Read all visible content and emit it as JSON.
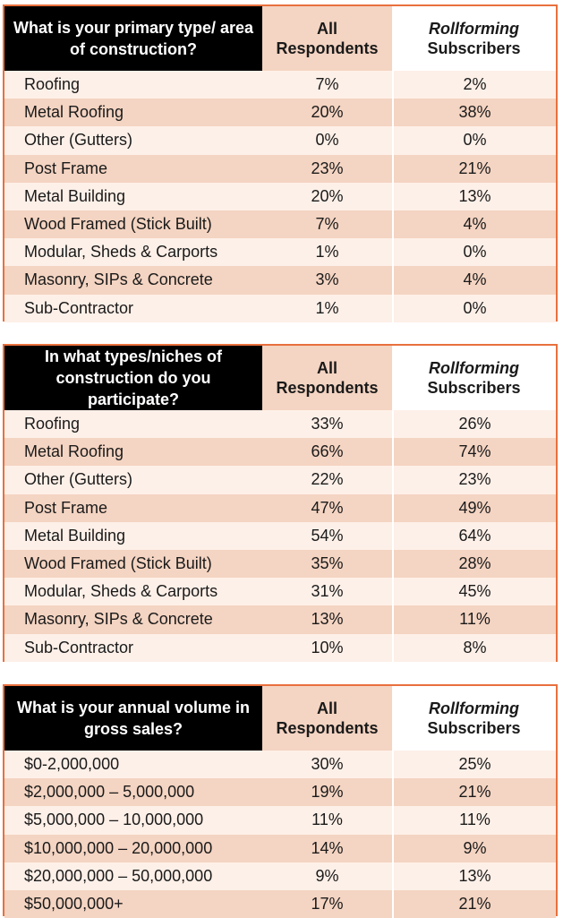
{
  "tables": [
    {
      "question": "What is your primary type/ area of construction?",
      "col1": "All Respondents",
      "col2_line1": "Rollforming",
      "col2_line2": "Subscribers",
      "rows": [
        {
          "label": "Roofing",
          "all": "7%",
          "subs": "2%"
        },
        {
          "label": "Metal Roofing",
          "all": "20%",
          "subs": "38%"
        },
        {
          "label": "Other (Gutters)",
          "all": "0%",
          "subs": "0%"
        },
        {
          "label": "Post Frame",
          "all": "23%",
          "subs": "21%"
        },
        {
          "label": "Metal Building",
          "all": "20%",
          "subs": "13%"
        },
        {
          "label": "Wood Framed (Stick Built)",
          "all": "7%",
          "subs": "4%"
        },
        {
          "label": "Modular, Sheds & Carports",
          "all": "1%",
          "subs": "0%"
        },
        {
          "label": "Masonry, SIPs & Concrete",
          "all": "3%",
          "subs": "4%"
        },
        {
          "label": "Sub-Contractor",
          "all": "1%",
          "subs": "0%"
        }
      ]
    },
    {
      "question": "In what types/niches of construction do you participate?",
      "col1": "All Respondents",
      "col2_line1": "Rollforming",
      "col2_line2": "Subscribers",
      "rows": [
        {
          "label": "Roofing",
          "all": "33%",
          "subs": "26%"
        },
        {
          "label": "Metal Roofing",
          "all": "66%",
          "subs": "74%"
        },
        {
          "label": "Other (Gutters)",
          "all": "22%",
          "subs": "23%"
        },
        {
          "label": "Post Frame",
          "all": "47%",
          "subs": "49%"
        },
        {
          "label": "Metal Building",
          "all": "54%",
          "subs": "64%"
        },
        {
          "label": "Wood Framed (Stick Built)",
          "all": "35%",
          "subs": "28%"
        },
        {
          "label": "Modular, Sheds & Carports",
          "all": "31%",
          "subs": "45%"
        },
        {
          "label": "Masonry, SIPs & Concrete",
          "all": "13%",
          "subs": "11%"
        },
        {
          "label": "Sub-Contractor",
          "all": "10%",
          "subs": "8%"
        }
      ]
    },
    {
      "question": "What is your annual volume in gross sales?",
      "col1": "All Respondents",
      "col2_line1": "Rollforming",
      "col2_line2": "Subscribers",
      "rows": [
        {
          "label": "$0-2,000,000",
          "all": "30%",
          "subs": "25%"
        },
        {
          "label": "$2,000,000 – 5,000,000",
          "all": "19%",
          "subs": "21%"
        },
        {
          "label": "$5,000,000 – 10,000,000",
          "all": "11%",
          "subs": "11%"
        },
        {
          "label": "$10,000,000 – 20,000,000",
          "all": "14%",
          "subs": "9%"
        },
        {
          "label": "$20,000,000 – 50,000,000",
          "all": "9%",
          "subs": "13%"
        },
        {
          "label": "$50,000,000+",
          "all": "17%",
          "subs": "21%"
        }
      ]
    }
  ],
  "colors": {
    "accent_border": "#e8703e",
    "header_dark": "#000000",
    "row_light": "#fdf0e8",
    "row_dark": "#f4d4c2"
  }
}
